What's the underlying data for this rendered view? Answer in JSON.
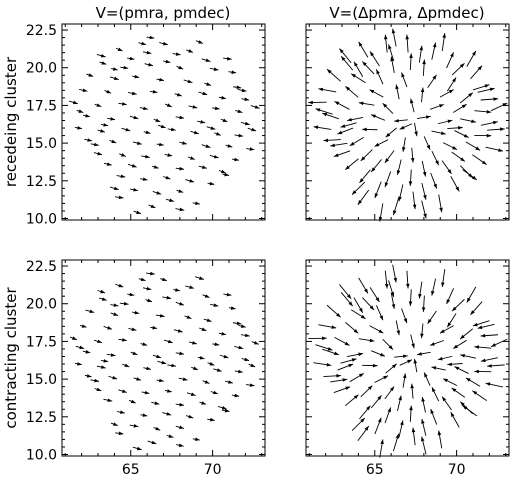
{
  "chart_data": {
    "type": "quiver",
    "figure": {
      "col_titles": [
        "V=(pmra, pmdec)",
        "V=(Δpmra, Δpmdec)"
      ],
      "row_labels": [
        "recedeing cluster",
        "contracting cluster"
      ]
    },
    "x_axis": {
      "xlim": [
        60.8,
        73.2
      ],
      "ticks": [
        65,
        70
      ],
      "tick_labels": [
        "65",
        "70"
      ]
    },
    "y_axis": {
      "ylim": [
        9.9,
        22.9
      ],
      "ticks": [
        10.0,
        12.5,
        15.0,
        17.5,
        20.0,
        22.5
      ],
      "tick_labels": [
        "10.0",
        "12.5",
        "15.0",
        "17.5",
        "20.0",
        "22.5"
      ]
    },
    "stars": [
      [
        66.2,
        22.0
      ],
      [
        67.0,
        21.6
      ],
      [
        64.3,
        21.2
      ],
      [
        66.0,
        21.0
      ],
      [
        67.8,
        20.9
      ],
      [
        68.6,
        21.1
      ],
      [
        63.2,
        20.8
      ],
      [
        65.0,
        20.6
      ],
      [
        67.2,
        20.4
      ],
      [
        69.6,
        20.5
      ],
      [
        63.3,
        20.3
      ],
      [
        64.6,
        20.0
      ],
      [
        66.1,
        20.2
      ],
      [
        68.0,
        20.0
      ],
      [
        70.1,
        19.9
      ],
      [
        71.2,
        19.7
      ],
      [
        62.5,
        19.5
      ],
      [
        64.0,
        19.3
      ],
      [
        65.3,
        19.4
      ],
      [
        66.8,
        19.2
      ],
      [
        68.5,
        19.1
      ],
      [
        69.7,
        18.9
      ],
      [
        71.5,
        18.7
      ],
      [
        62.1,
        18.5
      ],
      [
        63.6,
        18.4
      ],
      [
        65.1,
        18.3
      ],
      [
        66.4,
        18.4
      ],
      [
        67.9,
        18.2
      ],
      [
        69.4,
        18.3
      ],
      [
        70.6,
        18.0
      ],
      [
        72.0,
        17.9
      ],
      [
        61.5,
        17.7
      ],
      [
        63.0,
        17.5
      ],
      [
        64.5,
        17.6
      ],
      [
        65.8,
        17.3
      ],
      [
        67.3,
        17.5
      ],
      [
        68.8,
        17.4
      ],
      [
        70.2,
        17.3
      ],
      [
        71.6,
        17.1
      ],
      [
        72.6,
        17.4
      ],
      [
        62.3,
        16.8
      ],
      [
        63.8,
        16.6
      ],
      [
        65.2,
        16.7
      ],
      [
        66.6,
        16.5
      ],
      [
        68.0,
        16.7
      ],
      [
        69.3,
        16.4
      ],
      [
        70.7,
        16.5
      ],
      [
        72.0,
        16.3
      ],
      [
        61.8,
        16.0
      ],
      [
        63.2,
        15.8
      ],
      [
        64.7,
        15.9
      ],
      [
        66.0,
        15.7
      ],
      [
        67.5,
        15.9
      ],
      [
        68.9,
        15.7
      ],
      [
        70.3,
        15.6
      ],
      [
        71.6,
        15.5
      ],
      [
        62.4,
        15.2
      ],
      [
        63.9,
        15.1
      ],
      [
        65.4,
        15.0
      ],
      [
        66.8,
        14.9
      ],
      [
        68.2,
        15.0
      ],
      [
        69.6,
        14.8
      ],
      [
        71.0,
        14.8
      ],
      [
        72.3,
        14.6
      ],
      [
        63.0,
        14.3
      ],
      [
        64.5,
        14.2
      ],
      [
        65.9,
        14.1
      ],
      [
        67.3,
        14.2
      ],
      [
        68.7,
        14.0
      ],
      [
        70.1,
        14.1
      ],
      [
        71.4,
        13.9
      ],
      [
        63.6,
        13.6
      ],
      [
        65.1,
        13.5
      ],
      [
        66.5,
        13.4
      ],
      [
        68.0,
        13.3
      ],
      [
        69.4,
        13.4
      ],
      [
        70.6,
        13.1
      ],
      [
        64.4,
        12.8
      ],
      [
        65.8,
        12.6
      ],
      [
        67.2,
        12.7
      ],
      [
        68.6,
        12.5
      ],
      [
        69.9,
        12.3
      ],
      [
        65.2,
        11.9
      ],
      [
        66.6,
        11.7
      ],
      [
        68.0,
        11.8
      ],
      [
        64.3,
        11.4
      ],
      [
        67.4,
        11.2
      ],
      [
        66.3,
        10.8
      ],
      [
        68.0,
        10.6
      ],
      [
        69.0,
        11.0
      ],
      [
        65.4,
        10.4
      ],
      [
        64.0,
        12.0
      ],
      [
        70.8,
        12.9
      ],
      [
        62.8,
        14.9
      ],
      [
        72.4,
        15.9
      ],
      [
        61.9,
        17.1
      ],
      [
        70.9,
        20.6
      ],
      [
        65.7,
        21.6
      ],
      [
        69.2,
        21.7
      ],
      [
        71.8,
        18.5
      ],
      [
        63.4,
        16.2
      ],
      [
        66.9,
        16.1
      ],
      [
        69.9,
        16.0
      ],
      [
        64.0,
        19.9
      ]
    ],
    "vectors": {
      "recedeing cluster": {
        "V=(pmra, pmdec)": {
          "pmra": 0.55,
          "pmdec": -0.14
        }
      },
      "contracting cluster": {
        "V=(pmra, pmdec)": {
          "pmra": 0.55,
          "pmdec": -0.14
        }
      }
    },
    "cluster_center": [
      67.3,
      16.4
    ]
  }
}
